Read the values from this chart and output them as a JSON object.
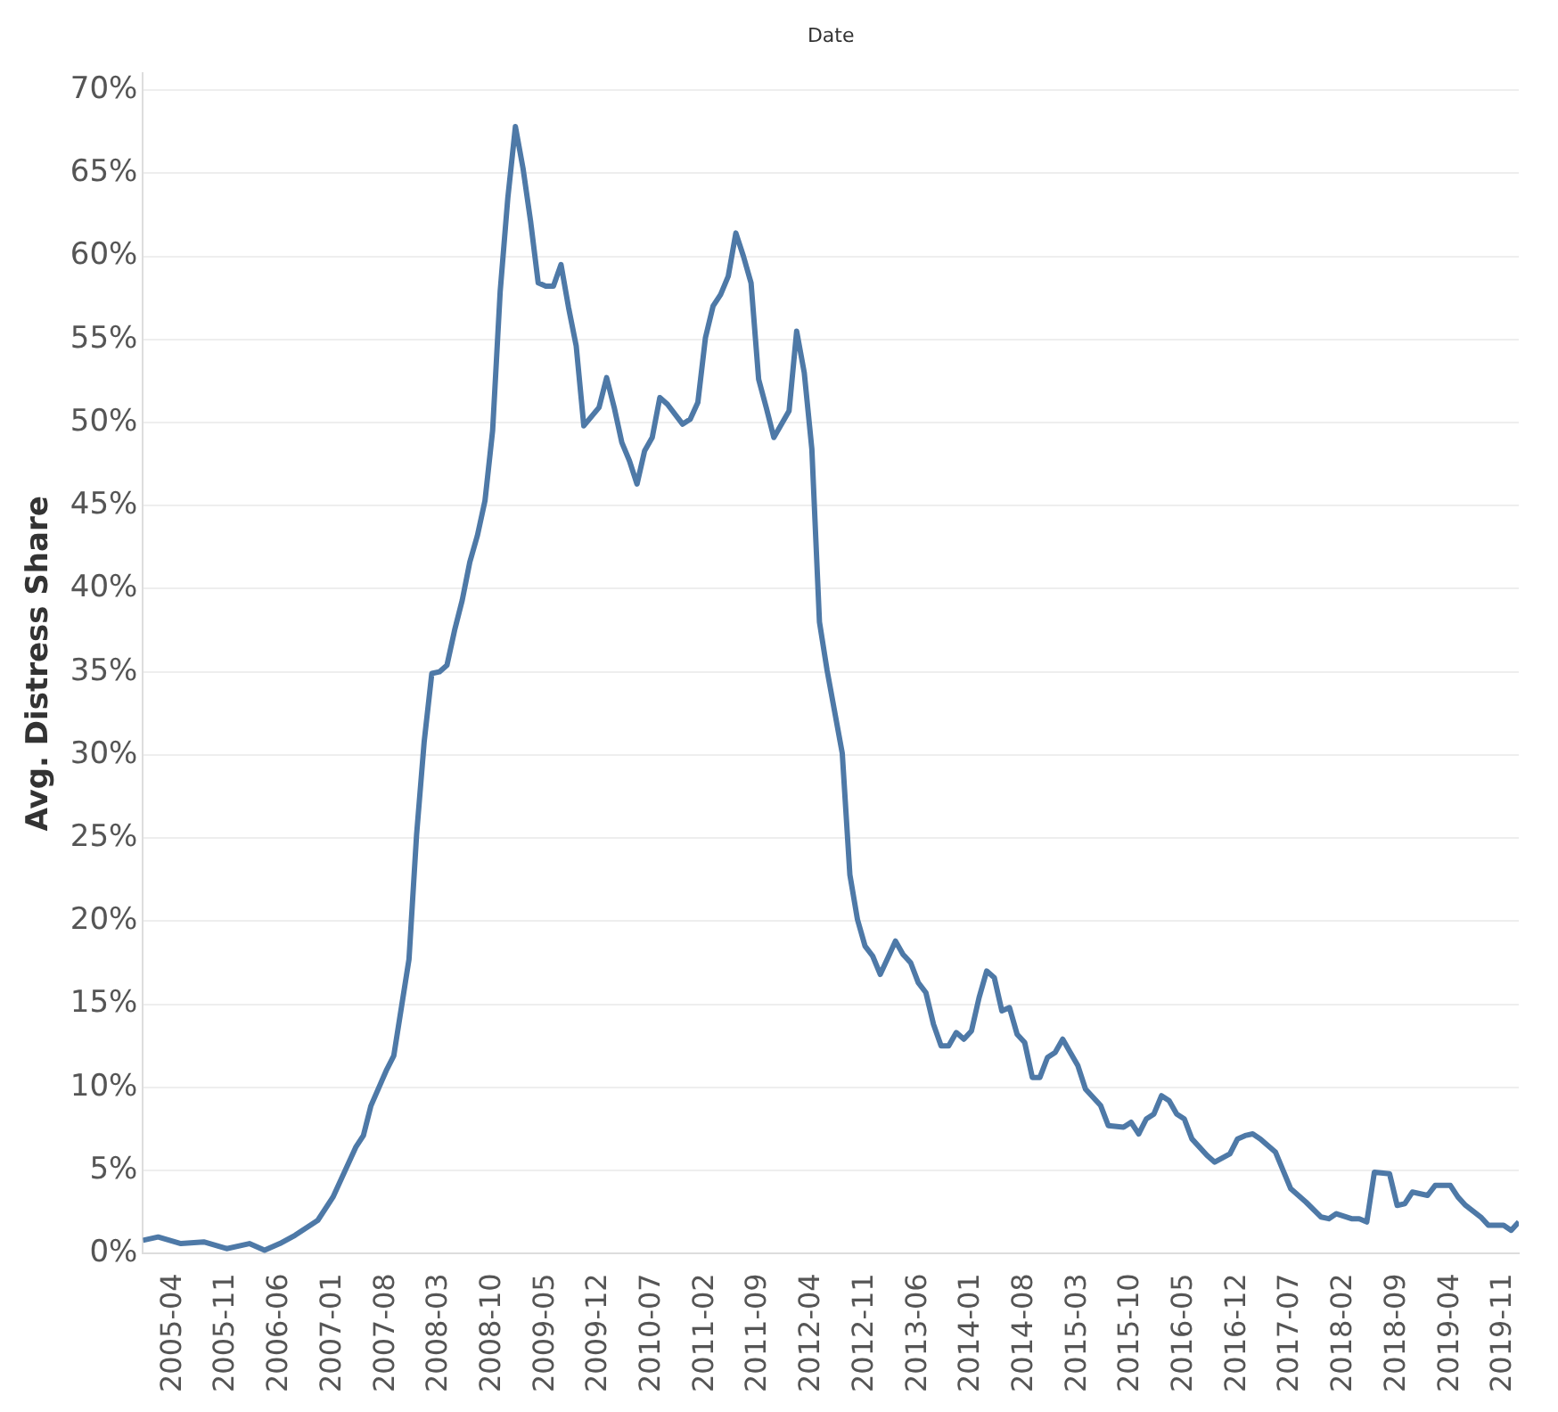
{
  "chart_data": {
    "type": "line",
    "xlabel": "Date",
    "ylabel": "Avg. Distress Share",
    "color": "#4e79a7",
    "grid": "y",
    "x": [
      "2004-12",
      "2005-02",
      "2005-05",
      "2005-08",
      "2005-11",
      "2006-02",
      "2006-04",
      "2006-06",
      "2006-08",
      "2006-11",
      "2007-01",
      "2007-04",
      "2007-05",
      "2007-06",
      "2007-08",
      "2007-09",
      "2007-10",
      "2007-11",
      "2007-12",
      "2008-01",
      "2008-02",
      "2008-03",
      "2008-04",
      "2008-05",
      "2008-06",
      "2008-07",
      "2008-08",
      "2008-09",
      "2008-10",
      "2008-11",
      "2008-12",
      "2009-01",
      "2009-02",
      "2009-03",
      "2009-04",
      "2009-05",
      "2009-06",
      "2009-07",
      "2009-08",
      "2009-09",
      "2009-10",
      "2009-12",
      "2010-01",
      "2010-02",
      "2010-03",
      "2010-04",
      "2010-05",
      "2010-06",
      "2010-07",
      "2010-08",
      "2010-09",
      "2010-11",
      "2010-12",
      "2011-01",
      "2011-02",
      "2011-03",
      "2011-04",
      "2011-05",
      "2011-06",
      "2011-07",
      "2011-08",
      "2011-09",
      "2011-10",
      "2011-11",
      "2012-01",
      "2012-02",
      "2012-03",
      "2012-04",
      "2012-05",
      "2012-06",
      "2012-08",
      "2012-09",
      "2012-10",
      "2012-11",
      "2012-12",
      "2013-01",
      "2013-02",
      "2013-03",
      "2013-04",
      "2013-05",
      "2013-06",
      "2013-07",
      "2013-08",
      "2013-09",
      "2013-10",
      "2013-11",
      "2013-12",
      "2014-01",
      "2014-02",
      "2014-03",
      "2014-04",
      "2014-05",
      "2014-06",
      "2014-07",
      "2014-08",
      "2014-09",
      "2014-10",
      "2014-11",
      "2014-12",
      "2015-01",
      "2015-02",
      "2015-03",
      "2015-04",
      "2015-06",
      "2015-07",
      "2015-09",
      "2015-10",
      "2015-11",
      "2015-12",
      "2016-01",
      "2016-02",
      "2016-03",
      "2016-04",
      "2016-05",
      "2016-06",
      "2016-08",
      "2016-09",
      "2016-11",
      "2016-12",
      "2017-01",
      "2017-02",
      "2017-03",
      "2017-05",
      "2017-06",
      "2017-07",
      "2017-09",
      "2017-11",
      "2017-12",
      "2018-01",
      "2018-03",
      "2018-04",
      "2018-05",
      "2018-06",
      "2018-08",
      "2018-09",
      "2018-10",
      "2018-11",
      "2019-01",
      "2019-02",
      "2019-04",
      "2019-05",
      "2019-06",
      "2019-08",
      "2019-09",
      "2019-11",
      "2019-12",
      "2020-01"
    ],
    "values": [
      0.8,
      1.0,
      0.6,
      0.7,
      0.3,
      0.6,
      0.2,
      0.6,
      1.1,
      2.0,
      3.4,
      6.4,
      7.1,
      8.9,
      11.0,
      11.9,
      14.8,
      17.7,
      25.2,
      30.8,
      34.9,
      35.0,
      35.4,
      37.5,
      39.3,
      41.6,
      43.2,
      45.3,
      49.5,
      57.9,
      63.5,
      67.8,
      65.3,
      62.1,
      58.4,
      58.2,
      58.2,
      59.5,
      56.9,
      54.6,
      49.8,
      50.9,
      52.7,
      50.9,
      48.8,
      47.7,
      46.3,
      48.3,
      49.1,
      51.5,
      51.1,
      49.9,
      50.2,
      51.2,
      55.1,
      57.0,
      57.7,
      58.8,
      61.4,
      60.0,
      58.4,
      52.6,
      50.9,
      49.1,
      50.7,
      55.5,
      53.0,
      48.4,
      38.0,
      35.1,
      30.1,
      22.8,
      20.1,
      18.5,
      17.9,
      16.8,
      17.8,
      18.8,
      18.0,
      17.5,
      16.3,
      15.7,
      13.8,
      12.5,
      12.5,
      13.3,
      12.9,
      13.4,
      15.4,
      17.0,
      16.6,
      14.6,
      14.8,
      13.2,
      12.7,
      10.6,
      10.6,
      11.8,
      12.1,
      12.9,
      12.1,
      11.3,
      9.9,
      8.9,
      7.7,
      7.6,
      7.9,
      7.2,
      8.1,
      8.4,
      9.5,
      9.2,
      8.4,
      8.1,
      6.9,
      5.9,
      5.5,
      6.0,
      6.9,
      7.1,
      7.2,
      6.9,
      6.1,
      5.0,
      3.9,
      3.1,
      2.2,
      2.1,
      2.4,
      2.1,
      2.1,
      1.9,
      4.9,
      4.8,
      2.9,
      3.0,
      3.7,
      3.5,
      4.1,
      4.1,
      3.4,
      2.9,
      2.2,
      1.7,
      1.7,
      1.4,
      1.9
    ],
    "xlim": [
      "2004-12",
      "2020-01"
    ],
    "xticks": [
      "2005-04",
      "2005-11",
      "2006-06",
      "2007-01",
      "2007-08",
      "2008-03",
      "2008-10",
      "2009-05",
      "2009-12",
      "2010-07",
      "2011-02",
      "2011-09",
      "2012-04",
      "2012-11",
      "2013-06",
      "2014-01",
      "2014-08",
      "2015-03",
      "2015-10",
      "2016-05",
      "2016-12",
      "2017-07",
      "2018-02",
      "2018-09",
      "2019-04",
      "2019-11"
    ],
    "ylim": [
      0,
      71
    ],
    "yticks": [
      {
        "value": 0,
        "label": "0%"
      },
      {
        "value": 5,
        "label": "5%"
      },
      {
        "value": 10,
        "label": "10%"
      },
      {
        "value": 15,
        "label": "15%"
      },
      {
        "value": 20,
        "label": "20%"
      },
      {
        "value": 25,
        "label": "25%"
      },
      {
        "value": 30,
        "label": "30%"
      },
      {
        "value": 35,
        "label": "35%"
      },
      {
        "value": 40,
        "label": "40%"
      },
      {
        "value": 45,
        "label": "45%"
      },
      {
        "value": 50,
        "label": "50%"
      },
      {
        "value": 55,
        "label": "55%"
      },
      {
        "value": 60,
        "label": "60%"
      },
      {
        "value": 65,
        "label": "65%"
      },
      {
        "value": 70,
        "label": "70%"
      }
    ]
  }
}
